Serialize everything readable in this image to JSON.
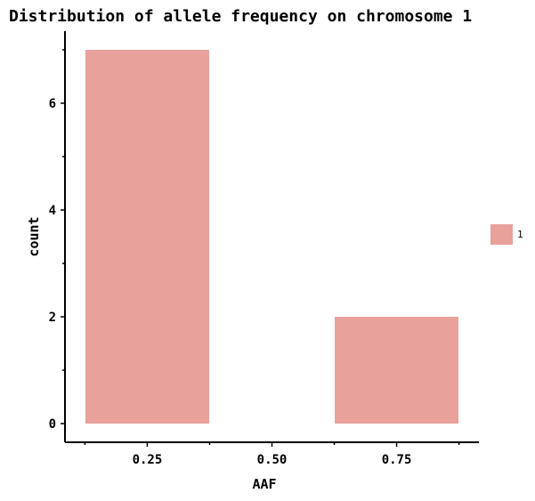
{
  "title": "Distribution of allele frequency on chromosome 1",
  "chart_data": {
    "type": "bar",
    "title": "Distribution of allele frequency on chromosome 1",
    "xlabel": "AAF",
    "ylabel": "count",
    "bins": [
      {
        "x_start": 0.125,
        "x_end": 0.375,
        "value": 7
      },
      {
        "x_start": 0.375,
        "x_end": 0.625,
        "value": 0
      },
      {
        "x_start": 0.625,
        "x_end": 0.875,
        "value": 2
      }
    ],
    "x_ticks": [
      "0.25",
      "0.50",
      "0.75"
    ],
    "x_tick_values": [
      0.25,
      0.5,
      0.75
    ],
    "y_ticks": [
      "0",
      "2",
      "4",
      "6"
    ],
    "y_tick_values": [
      0,
      2,
      4,
      6
    ],
    "xlim": [
      0.085,
      0.915
    ],
    "ylim": [
      -0.35,
      7.35
    ],
    "grid": false,
    "legend": {
      "position": "right",
      "entries": [
        {
          "name": "1",
          "color": "#e8a19b"
        }
      ]
    },
    "bar_color": "#e8a19b"
  }
}
